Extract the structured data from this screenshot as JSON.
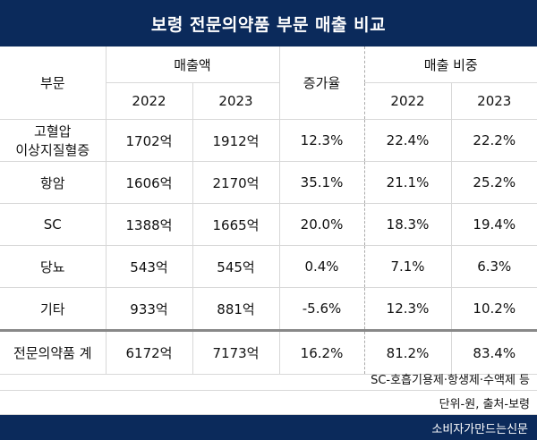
{
  "title": "보령 전문의약품 부문 매출 비교",
  "header": {
    "dept": "부문",
    "sales_group": "매출액",
    "growth": "증가율",
    "share_group": "매출 비중",
    "year1": "2022",
    "year2": "2023"
  },
  "rows": [
    {
      "dept_line1": "고혈압",
      "dept_line2": "이상지질혈증",
      "sales_2022": "1702억",
      "sales_2023": "1912억",
      "growth": "12.3%",
      "share_2022": "22.4%",
      "share_2023": "22.2%"
    },
    {
      "dept_line1": "항암",
      "dept_line2": "",
      "sales_2022": "1606억",
      "sales_2023": "2170억",
      "growth": "35.1%",
      "share_2022": "21.1%",
      "share_2023": "25.2%"
    },
    {
      "dept_line1": "SC",
      "dept_line2": "",
      "sales_2022": "1388억",
      "sales_2023": "1665억",
      "growth": "20.0%",
      "share_2022": "18.3%",
      "share_2023": "19.4%"
    },
    {
      "dept_line1": "당뇨",
      "dept_line2": "",
      "sales_2022": "543억",
      "sales_2023": "545억",
      "growth": "0.4%",
      "share_2022": "7.1%",
      "share_2023": "6.3%"
    },
    {
      "dept_line1": "기타",
      "dept_line2": "",
      "sales_2022": "933억",
      "sales_2023": "881억",
      "growth": "-5.6%",
      "share_2022": "12.3%",
      "share_2023": "10.2%"
    }
  ],
  "total": {
    "dept": "전문의약품 계",
    "sales_2022": "6172억",
    "sales_2023": "7173억",
    "growth": "16.2%",
    "share_2022": "81.2%",
    "share_2023": "83.4%"
  },
  "notes": {
    "sc_note": "SC-호흡기용제·항생제·수액제 등",
    "unit_source": "단위-원, 출처-보령"
  },
  "footer": "소비자가만드는신문",
  "colors": {
    "navy": "#0b2a5b"
  }
}
